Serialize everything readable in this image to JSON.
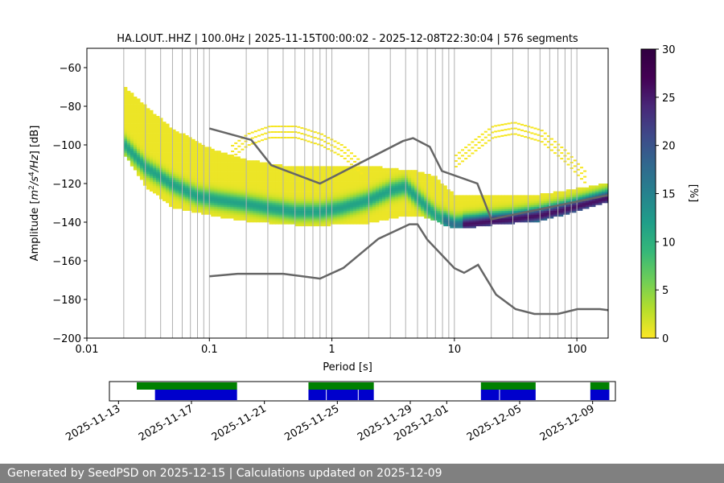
{
  "footer": {
    "text": "Generated by SeedPSD on 2025-12-15 | Calculations updated on 2025-12-09"
  },
  "colors": {
    "nlnm_line": "#666666",
    "coverage_total": "#008000",
    "coverage_used": "#0000cc",
    "footer_bg": "#808080",
    "grid": "#b0b0b0"
  },
  "chart_data": [
    {
      "type": "heatmap",
      "title": "HA.LOUT..HHZ | 100.0Hz | 2025-11-15T00:00:02 - 2025-12-08T22:30:04 | 576 segments",
      "xlabel": "Period [s]",
      "ylabel": "Amplitude [$m^2/s^4/Hz$] [dB]",
      "x_scale": "log",
      "xlim": [
        0.01,
        180
      ],
      "ylim": [
        -200,
        -50
      ],
      "x_ticks": [
        0.01,
        0.1,
        1,
        10,
        100
      ],
      "x_tick_labels": [
        "0.01",
        "0.1",
        "1",
        "10",
        "100"
      ],
      "y_ticks": [
        -60,
        -80,
        -100,
        -120,
        -140,
        -160,
        -180,
        -200
      ],
      "y_tick_labels": [
        "−60",
        "−80",
        "−100",
        "−120",
        "−140",
        "−160",
        "−180",
        "−200"
      ],
      "colorbar": {
        "label": "[%]",
        "range": [
          0,
          30
        ],
        "ticks": [
          0,
          5,
          10,
          15,
          20,
          25,
          30
        ],
        "tick_labels": [
          "0",
          "5",
          "10",
          "15",
          "20",
          "25",
          "30"
        ],
        "colormap": "viridis_r"
      },
      "psd_mode": {
        "period": [
          0.02,
          0.03,
          0.05,
          0.08,
          0.12,
          0.2,
          0.3,
          0.5,
          0.8,
          1.2,
          2,
          3,
          4,
          5,
          7,
          10,
          15,
          20,
          30,
          50,
          80,
          120,
          180
        ],
        "amplitude": [
          -100,
          -112,
          -121,
          -127,
          -129,
          -131,
          -133,
          -135,
          -135,
          -133,
          -129,
          -124,
          -122,
          -128,
          -137,
          -142,
          -141,
          -140,
          -139,
          -137,
          -134,
          -131,
          -128
        ]
      },
      "psd_spread": {
        "period": [
          0.02,
          0.03,
          0.05,
          0.1,
          0.2,
          0.5,
          1,
          2,
          3.5,
          5,
          7,
          10,
          15,
          20,
          50,
          100,
          180
        ],
        "upper": [
          -70,
          -80,
          -92,
          -102,
          -108,
          -112,
          -112,
          -111,
          -113,
          -114,
          -117,
          -126,
          -127,
          -127,
          -126,
          -123,
          -120
        ],
        "lower": [
          -105,
          -122,
          -133,
          -137,
          -140,
          -142,
          -142,
          -141,
          -138,
          -137,
          -140,
          -144,
          -143,
          -142,
          -140,
          -135,
          -130
        ]
      },
      "psd_secondary_bands": [
        {
          "period": [
            0.15,
            0.2,
            0.3,
            0.5,
            0.8,
            1.2,
            1.8
          ],
          "amplitude": [
            -100,
            -94,
            -90,
            -90,
            -94,
            -100,
            -110
          ]
        },
        {
          "period": [
            10,
            15,
            20,
            30,
            50,
            80,
            120
          ],
          "amplitude": [
            -105,
            -96,
            -90,
            -88,
            -92,
            -103,
            -115
          ]
        }
      ],
      "nhnm": {
        "period": [
          0.1,
          0.22,
          0.32,
          0.8,
          3.8,
          4.6,
          6.3,
          7.9,
          15.4,
          20,
          180
        ],
        "amplitude": [
          -91.5,
          -97.4,
          -110.5,
          -120,
          -98,
          -96.5,
          -101,
          -113.5,
          -120,
          -138.5,
          -126
        ]
      },
      "nlnm": {
        "period": [
          0.1,
          0.17,
          0.4,
          0.8,
          1.24,
          2.4,
          4.3,
          5,
          6,
          10,
          12,
          15.6,
          21.9,
          31.6,
          45,
          70,
          101,
          154,
          180
        ],
        "amplitude": [
          -168,
          -166.7,
          -166.7,
          -169.2,
          -163.7,
          -148.6,
          -141.1,
          -141.1,
          -149,
          -163.8,
          -166.2,
          -162.1,
          -177.5,
          -185,
          -187.5,
          -187.5,
          -185,
          -185,
          -185.5
        ]
      }
    },
    {
      "type": "bar",
      "subtype": "data-coverage",
      "x_tick_labels": [
        "2025-11-13",
        "2025-11-17",
        "2025-11-21",
        "2025-11-25",
        "2025-11-29",
        "2025-12-01",
        "2025-12-05",
        "2025-12-09"
      ],
      "x_tick_dates": [
        "2025-11-13",
        "2025-11-17",
        "2025-11-21",
        "2025-11-25",
        "2025-11-29",
        "2025-12-01",
        "2025-12-05",
        "2025-12-09"
      ],
      "total_data": [
        [
          "2025-11-14T00:00",
          "2025-11-19T12:00"
        ],
        [
          "2025-11-23T10:00",
          "2025-11-27T00:00"
        ],
        [
          "2025-12-02T21:00",
          "2025-12-05T21:00"
        ],
        [
          "2025-12-08T21:00",
          "2025-12-09T22:00"
        ]
      ],
      "used_data": [
        [
          "2025-11-15T00:00",
          "2025-11-19T12:00"
        ],
        [
          "2025-11-23T10:00",
          "2025-11-24T09:00"
        ],
        [
          "2025-11-24T10:00",
          "2025-11-26T03:00"
        ],
        [
          "2025-11-26T04:00",
          "2025-11-27T00:00"
        ],
        [
          "2025-12-02T21:00",
          "2025-12-03T21:00"
        ],
        [
          "2025-12-03T22:00",
          "2025-12-05T21:00"
        ],
        [
          "2025-12-08T21:00",
          "2025-12-09T22:00"
        ]
      ]
    }
  ]
}
